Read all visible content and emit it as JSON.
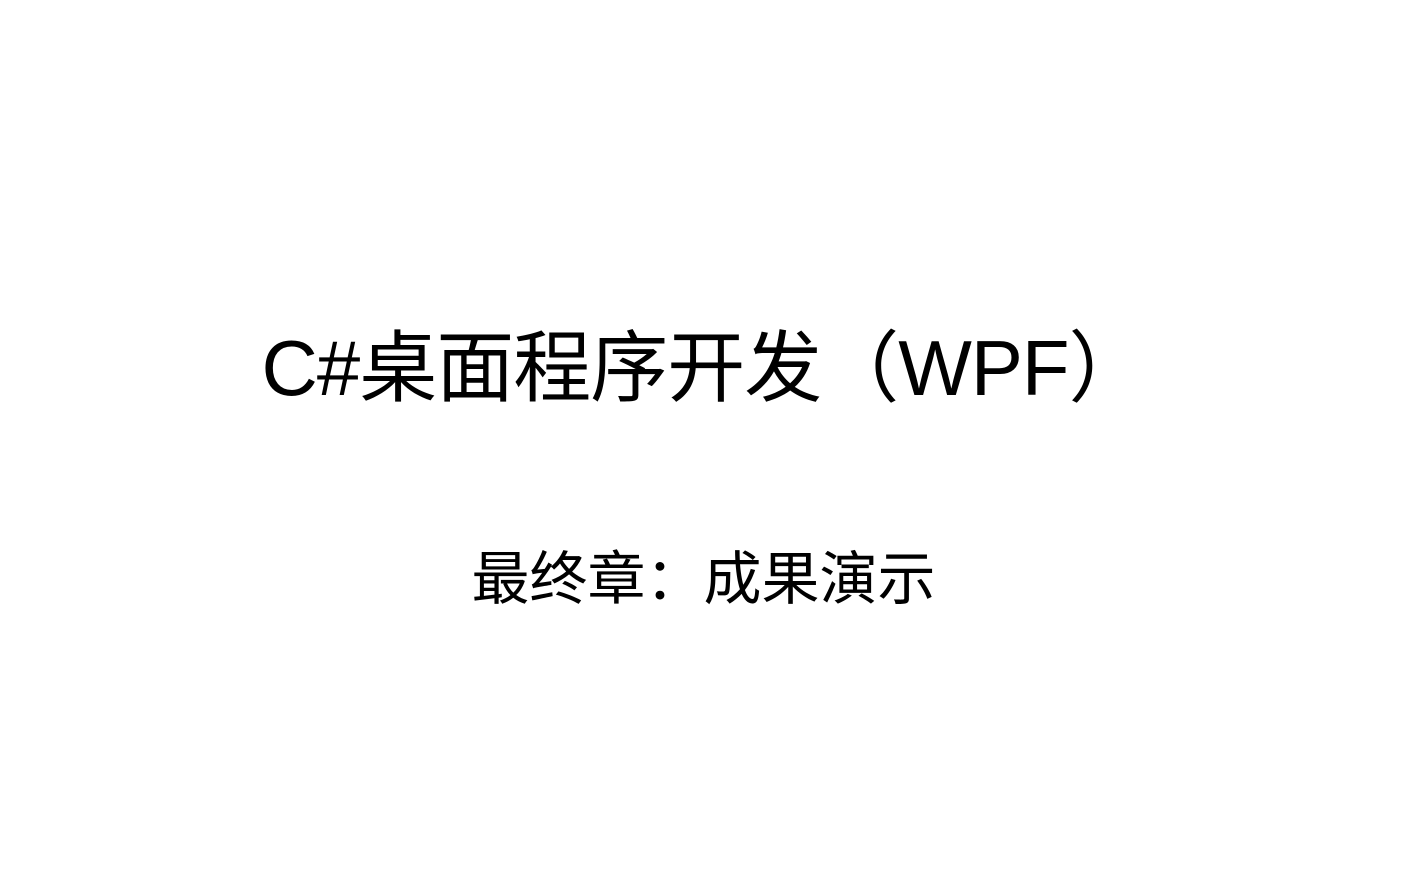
{
  "slide": {
    "title": "C#桌面程序开发（WPF）",
    "subtitle": "最终章：成果演示",
    "background_color": "#ffffff",
    "text_color": "#000000"
  }
}
